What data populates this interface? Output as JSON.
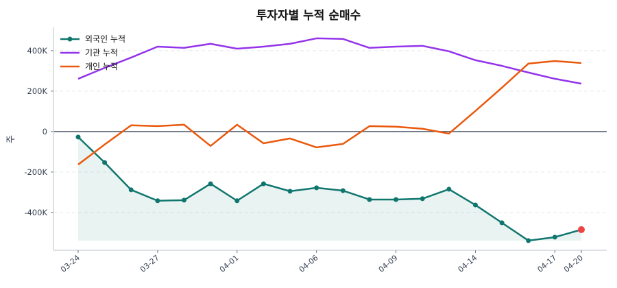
{
  "chart_data": {
    "type": "line",
    "title": "투자자별 누적 순매수",
    "xlabel": "",
    "ylabel": "주",
    "ylim": [
      -587,
      515
    ],
    "yticks": [
      {
        "value": 400,
        "label": "400K"
      },
      {
        "value": 200,
        "label": "200K"
      },
      {
        "value": 0,
        "label": "0"
      },
      {
        "value": -200,
        "label": "-200K"
      },
      {
        "value": -400,
        "label": "-400K"
      }
    ],
    "xticks": [
      {
        "index": 0,
        "label": "03-24"
      },
      {
        "index": 3,
        "label": "03-27"
      },
      {
        "index": 6,
        "label": "04-01"
      },
      {
        "index": 9,
        "label": "04-06"
      },
      {
        "index": 12,
        "label": "04-09"
      },
      {
        "index": 15,
        "label": "04-14"
      },
      {
        "index": 18,
        "label": "04-17"
      },
      {
        "index": 19,
        "label": "04-20"
      }
    ],
    "n_points": 20,
    "grid": "horizontal-dashed",
    "legend_position": "top-left",
    "series": [
      {
        "name": "외국인 누적",
        "color": "#0f766e",
        "markers": true,
        "fill": true,
        "values": [
          -27,
          -153,
          -288,
          -342,
          -339,
          -258,
          -342,
          -258,
          -295,
          -278,
          -292,
          -336,
          -336,
          -332,
          -285,
          -363,
          -451,
          -539,
          -522,
          -485
        ]
      },
      {
        "name": "기관 누적",
        "color": "#9333ea",
        "markers": false,
        "values": [
          261,
          315,
          366,
          420,
          414,
          434,
          410,
          420,
          434,
          461,
          458,
          414,
          420,
          424,
          397,
          353,
          325,
          292,
          261,
          237
        ]
      },
      {
        "name": "개인 누적",
        "color": "#ea580c",
        "markers": false,
        "values": [
          -163,
          -64,
          31,
          27,
          34,
          -71,
          34,
          -58,
          -34,
          -78,
          -61,
          27,
          24,
          14,
          -10,
          102,
          217,
          336,
          349,
          339
        ]
      }
    ],
    "highlight_last_color": "#ef4444"
  }
}
